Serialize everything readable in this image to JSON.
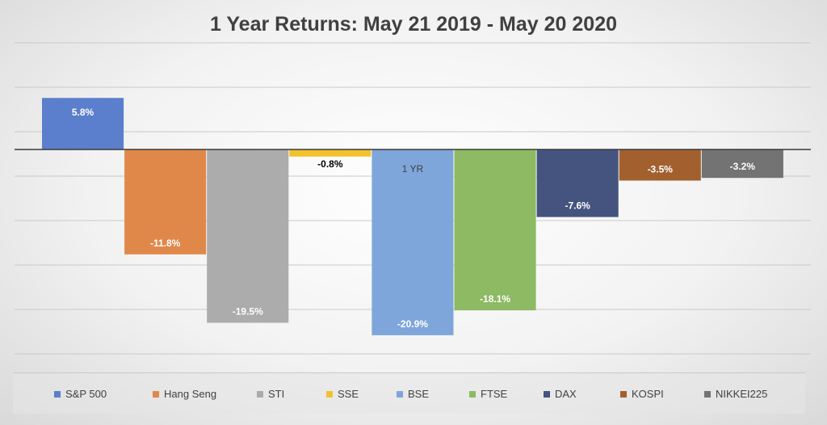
{
  "chart_data": {
    "type": "bar",
    "title": "1 Year Returns: May 21 2019 - May 20 2020",
    "category_label": "1 YR",
    "ylim": [
      -24,
      12
    ],
    "grid": true,
    "legend_position": "bottom",
    "series": [
      {
        "name": "S&P 500",
        "value": 5.8,
        "label": "5.8%",
        "color": "#5B7FCC",
        "label_color": "#ffffff"
      },
      {
        "name": "Hang Seng",
        "value": -11.8,
        "label": "-11.8%",
        "color": "#E0884A",
        "label_color": "#ffffff"
      },
      {
        "name": "STI",
        "value": -19.5,
        "label": "-19.5%",
        "color": "#ACACAC",
        "label_color": "#ffffff"
      },
      {
        "name": "SSE",
        "value": -0.8,
        "label": "-0.8%",
        "color": "#F2C12E",
        "label_color": "#000000"
      },
      {
        "name": "BSE",
        "value": -20.9,
        "label": "-20.9%",
        "color": "#7FA6DA",
        "label_color": "#ffffff"
      },
      {
        "name": "FTSE",
        "value": -18.1,
        "label": "-18.1%",
        "color": "#8DBA62",
        "label_color": "#ffffff"
      },
      {
        "name": "DAX",
        "value": -7.6,
        "label": "-7.6%",
        "color": "#44547F",
        "label_color": "#ffffff"
      },
      {
        "name": "KOSPI",
        "value": -3.5,
        "label": "-3.5%",
        "color": "#A2602F",
        "label_color": "#ffffff"
      },
      {
        "name": "NIKKEI225",
        "value": -3.2,
        "label": "-3.2%",
        "color": "#737373",
        "label_color": "#ffffff"
      }
    ]
  }
}
